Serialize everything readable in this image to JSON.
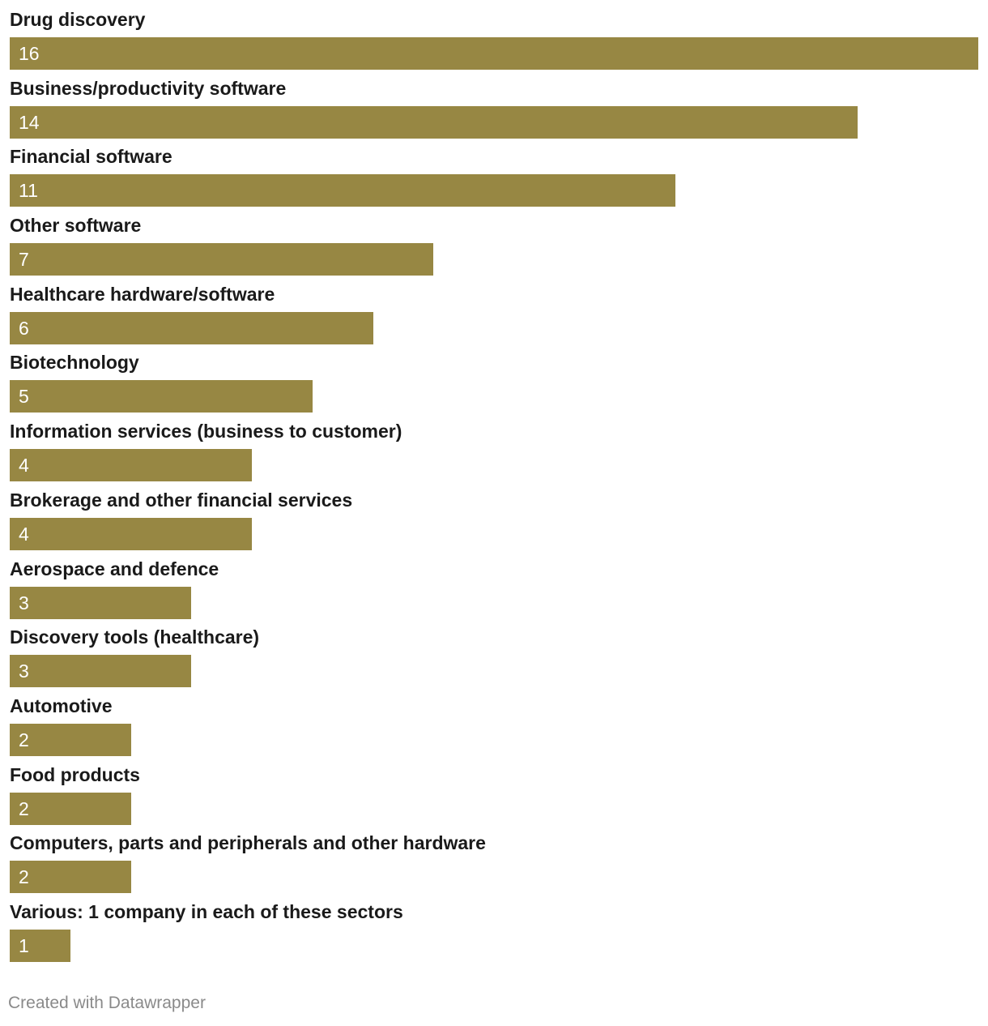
{
  "chart_data": {
    "type": "bar",
    "orientation": "horizontal",
    "categories": [
      "Drug discovery",
      "Business/productivity software",
      "Financial software",
      "Other software",
      "Healthcare hardware/software",
      "Biotechnology",
      "Information services (business to customer)",
      "Brokerage and other financial services",
      "Aerospace and defence",
      "Discovery tools (healthcare)",
      "Automotive",
      "Food products",
      "Computers, parts and peripherals and other hardware",
      "Various: 1 company in each of these sectors"
    ],
    "values": [
      16,
      14,
      11,
      7,
      6,
      5,
      4,
      4,
      3,
      3,
      2,
      2,
      2,
      1
    ],
    "xlim": [
      0,
      16
    ],
    "bar_color": "#978743",
    "value_label_color": "#ffffff",
    "grid": false,
    "legend": "none",
    "title": "",
    "xlabel": "",
    "ylabel": ""
  },
  "footer": {
    "credit": "Created with Datawrapper"
  }
}
